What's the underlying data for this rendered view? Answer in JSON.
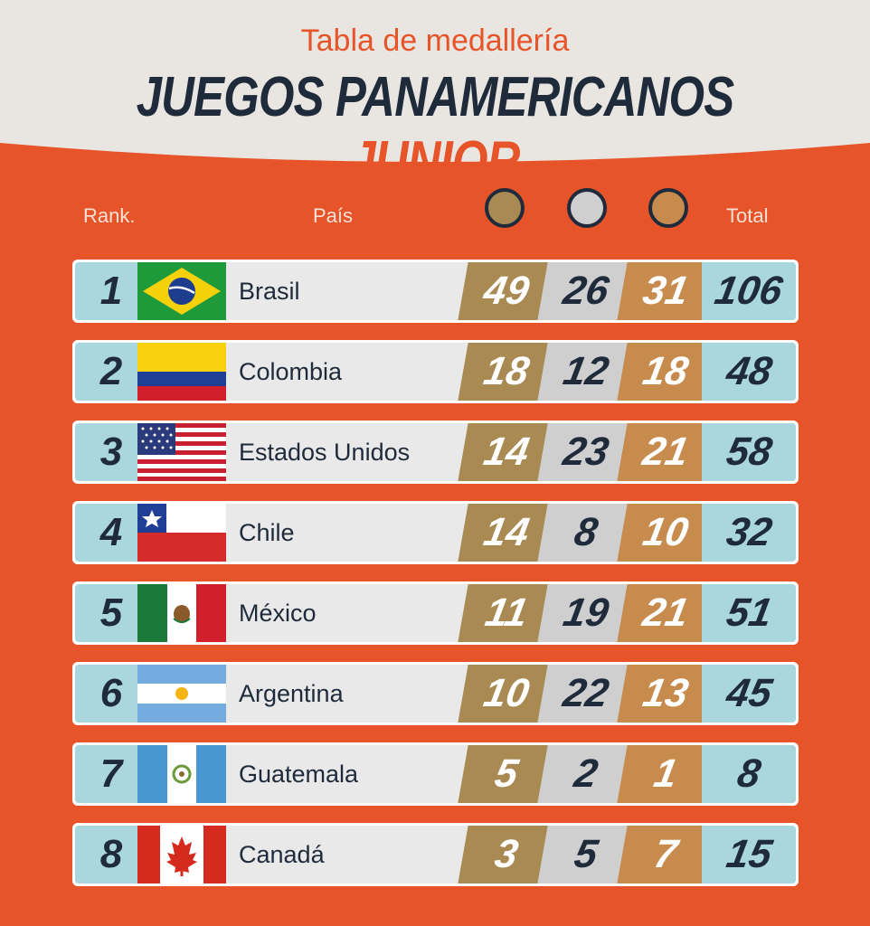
{
  "header": {
    "subtitle": "Tabla de medallería",
    "title_main": "JUEGOS PANAMERICANOS",
    "title_accent": "JUNIOR"
  },
  "columns": {
    "rank": "Rank.",
    "country": "País",
    "total": "Total",
    "medal_colors": {
      "gold": "#a88a52",
      "silver": "#cfcfcf",
      "bronze": "#c78b4e"
    }
  },
  "rows": [
    {
      "rank": "1",
      "country": "Brasil",
      "gold": "49",
      "silver": "26",
      "bronze": "31",
      "total": "106",
      "flag": "brazil-flag"
    },
    {
      "rank": "2",
      "country": "Colombia",
      "gold": "18",
      "silver": "12",
      "bronze": "18",
      "total": "48",
      "flag": "colombia-flag"
    },
    {
      "rank": "3",
      "country": "Estados Unidos",
      "gold": "14",
      "silver": "23",
      "bronze": "21",
      "total": "58",
      "flag": "usa-flag"
    },
    {
      "rank": "4",
      "country": "Chile",
      "gold": "14",
      "silver": "8",
      "bronze": "10",
      "total": "32",
      "flag": "chile-flag"
    },
    {
      "rank": "5",
      "country": "México",
      "gold": "11",
      "silver": "19",
      "bronze": "21",
      "total": "51",
      "flag": "mexico-flag"
    },
    {
      "rank": "6",
      "country": "Argentina",
      "gold": "10",
      "silver": "22",
      "bronze": "13",
      "total": "45",
      "flag": "argentina-flag"
    },
    {
      "rank": "7",
      "country": "Guatemala",
      "gold": "5",
      "silver": "2",
      "bronze": "1",
      "total": "8",
      "flag": "guatemala-flag"
    },
    {
      "rank": "8",
      "country": "Canadá",
      "gold": "3",
      "silver": "5",
      "bronze": "7",
      "total": "15",
      "flag": "canada-flag"
    }
  ],
  "colors": {
    "background": "#e8542a",
    "header_bg": "#e9e6e1",
    "text_dark": "#1f2a3a",
    "accent": "#e8542a"
  }
}
